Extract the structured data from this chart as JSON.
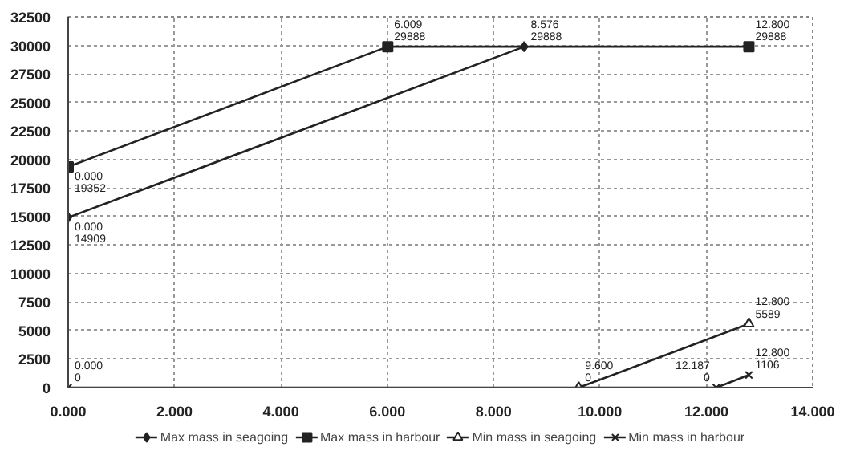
{
  "chart_data": {
    "type": "line",
    "xlim": [
      0,
      14
    ],
    "ylim": [
      0,
      32500
    ],
    "xticks": [
      {
        "value": 0,
        "label": "0.000"
      },
      {
        "value": 2,
        "label": "2.000"
      },
      {
        "value": 4,
        "label": "4.000"
      },
      {
        "value": 6,
        "label": "6.000"
      },
      {
        "value": 8,
        "label": "8.000"
      },
      {
        "value": 10,
        "label": "10.000"
      },
      {
        "value": 12,
        "label": "12.000"
      },
      {
        "value": 14,
        "label": "14.000"
      }
    ],
    "yticks": [
      0,
      2500,
      5000,
      7500,
      10000,
      12500,
      15000,
      17500,
      20000,
      22500,
      25000,
      27500,
      30000,
      32500
    ],
    "grid": true,
    "legend": "bottom",
    "series": [
      {
        "name": "Max mass in seagoing",
        "color": "#222222",
        "marker": "diamond",
        "x": [
          0,
          8.576
        ],
        "values": [
          14909,
          29888
        ],
        "value_labels": [
          "0.000\n14909",
          "8.576\n29888"
        ]
      },
      {
        "name": "Max mass in harbour",
        "color": "#222222",
        "marker": "square",
        "x": [
          0,
          6.009,
          12.8
        ],
        "values": [
          19352,
          29888,
          29888
        ],
        "value_labels": [
          "0.000\n19352",
          "6.009\n29888",
          "12.800\n29888"
        ]
      },
      {
        "name": "Min mass in seagoing",
        "color": "#222222",
        "marker": "triangle",
        "x": [
          9.6,
          12.8
        ],
        "values": [
          0,
          5589
        ],
        "value_labels": [
          "9.600\n0",
          "12.800\n5589"
        ]
      },
      {
        "name": "Min mass in harbour",
        "color": "#222222",
        "marker": "cross",
        "x": [
          0,
          12.187,
          12.8
        ],
        "values": [
          0,
          0,
          1106
        ],
        "value_labels": [
          "0.000\n0",
          "12.187\n0",
          "12.800\n1106"
        ]
      }
    ]
  }
}
